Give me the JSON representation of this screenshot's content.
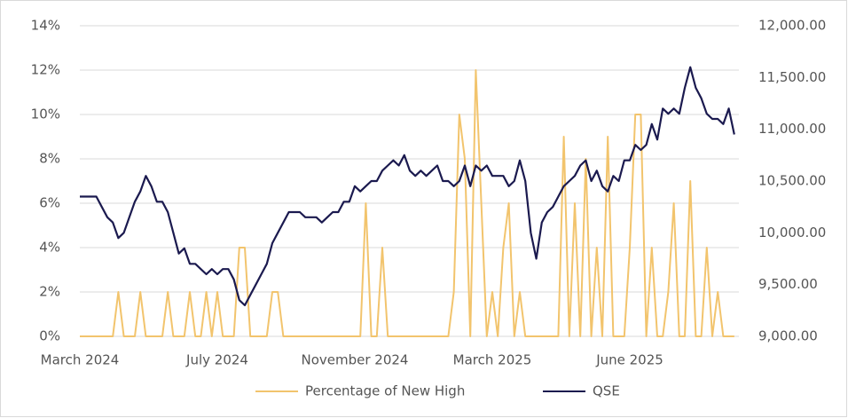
{
  "chart_data": {
    "type": "line",
    "categories": [
      "March 2024",
      null,
      null,
      null,
      null,
      null,
      null,
      null,
      null,
      null,
      null,
      null,
      null,
      null,
      null,
      null,
      null,
      null,
      null,
      null,
      null,
      null,
      null,
      null,
      null,
      "July 2024",
      null,
      null,
      null,
      null,
      null,
      null,
      null,
      null,
      null,
      null,
      null,
      null,
      null,
      null,
      null,
      null,
      null,
      null,
      null,
      null,
      null,
      null,
      null,
      null,
      "November 2024",
      null,
      null,
      null,
      null,
      null,
      null,
      null,
      null,
      null,
      null,
      null,
      null,
      null,
      null,
      null,
      null,
      null,
      null,
      null,
      null,
      null,
      null,
      null,
      null,
      "March 2025",
      null,
      null,
      null,
      null,
      null,
      null,
      null,
      null,
      null,
      null,
      null,
      null,
      null,
      null,
      null,
      null,
      null,
      null,
      null,
      null,
      null,
      null,
      null,
      null,
      "June 2025",
      null,
      null,
      null,
      null,
      null,
      null,
      null,
      null,
      null,
      null,
      null,
      null,
      null,
      null,
      null,
      null,
      null,
      null,
      null
    ],
    "series": [
      {
        "name": "Percentage of New High",
        "color": "#f2c46d",
        "axis": "y",
        "values": [
          0,
          0,
          0,
          0,
          0,
          0,
          0,
          2,
          0,
          0,
          0,
          2,
          0,
          0,
          0,
          0,
          2,
          0,
          0,
          0,
          2,
          0,
          0,
          2,
          0,
          2,
          0,
          0,
          0,
          4,
          4,
          0,
          0,
          0,
          0,
          2,
          2,
          0,
          0,
          0,
          0,
          0,
          0,
          0,
          0,
          0,
          0,
          0,
          0,
          0,
          0,
          0,
          6,
          0,
          0,
          4,
          0,
          0,
          0,
          0,
          0,
          0,
          0,
          0,
          0,
          0,
          0,
          0,
          2,
          10,
          8,
          0,
          12,
          6,
          0,
          2,
          0,
          4,
          6,
          0,
          2,
          0,
          0,
          0,
          0,
          0,
          0,
          0,
          9,
          0,
          6,
          0,
          8,
          0,
          4,
          0,
          9,
          0,
          0,
          0,
          4,
          10,
          10,
          0,
          4,
          0,
          0,
          2,
          6,
          0,
          0,
          7,
          0,
          0,
          4,
          0,
          2,
          0,
          0,
          0
        ]
      },
      {
        "name": "QSE",
        "color": "#1b1a4f",
        "axis": "y2",
        "values": [
          10350,
          10350,
          10350,
          10350,
          10250,
          10150,
          10100,
          9950,
          10000,
          10150,
          10300,
          10400,
          10550,
          10450,
          10300,
          10300,
          10200,
          10000,
          9800,
          9850,
          9700,
          9700,
          9650,
          9600,
          9650,
          9600,
          9650,
          9650,
          9550,
          9350,
          9300,
          9400,
          9500,
          9600,
          9700,
          9900,
          10000,
          10100,
          10200,
          10200,
          10200,
          10150,
          10150,
          10150,
          10100,
          10150,
          10200,
          10200,
          10300,
          10300,
          10450,
          10400,
          10450,
          10500,
          10500,
          10600,
          10650,
          10700,
          10650,
          10750,
          10600,
          10550,
          10600,
          10550,
          10600,
          10650,
          10500,
          10500,
          10450,
          10500,
          10650,
          10450,
          10650,
          10600,
          10650,
          10550,
          10550,
          10550,
          10450,
          10500,
          10700,
          10500,
          10000,
          9750,
          10100,
          10200,
          10250,
          10350,
          10450,
          10500,
          10550,
          10650,
          10700,
          10500,
          10600,
          10450,
          10400,
          10550,
          10500,
          10700,
          10700,
          10850,
          10800,
          10850,
          11050,
          10900,
          11200,
          11150,
          11200,
          11150,
          11400,
          11600,
          11400,
          11300,
          11150,
          11100,
          11100,
          11050,
          11200,
          10950
        ]
      }
    ],
    "ylim": [
      0,
      14
    ],
    "yticks": [
      {
        "value": 0,
        "label": "0%"
      },
      {
        "value": 2,
        "label": "2%"
      },
      {
        "value": 4,
        "label": "4%"
      },
      {
        "value": 6,
        "label": "6%"
      },
      {
        "value": 8,
        "label": "8%"
      },
      {
        "value": 10,
        "label": "10%"
      },
      {
        "value": 12,
        "label": "12%"
      },
      {
        "value": 14,
        "label": "14%"
      }
    ],
    "y2lim": [
      9000,
      12000
    ],
    "y2ticks": [
      {
        "value": 9000,
        "label": "9,000.00"
      },
      {
        "value": 9500,
        "label": "9,500.00"
      },
      {
        "value": 10000,
        "label": "10,000.00"
      },
      {
        "value": 10500,
        "label": "10,500.00"
      },
      {
        "value": 11000,
        "label": "11,000.00"
      },
      {
        "value": 11500,
        "label": "11,500.00"
      },
      {
        "value": 12000,
        "label": "12,000.00"
      }
    ],
    "grid": true,
    "legend": "bottom"
  }
}
